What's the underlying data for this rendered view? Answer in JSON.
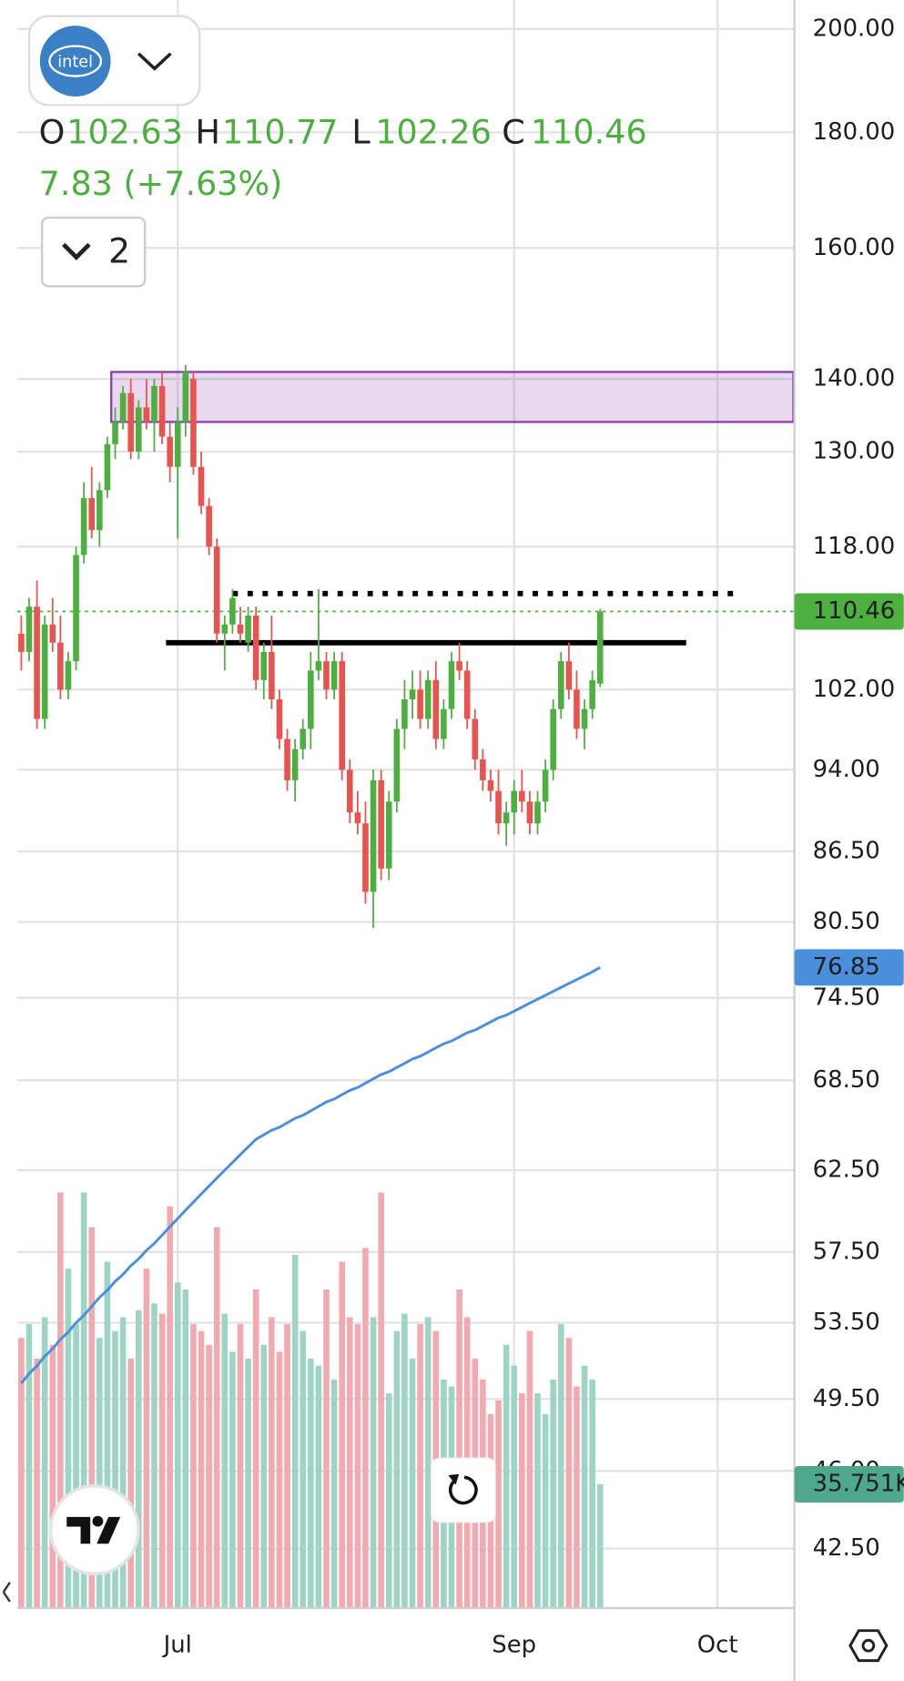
{
  "chart_data": {
    "type": "candlestick",
    "logo_text": "intel",
    "ohlc_labels": [
      "O",
      "H",
      "L",
      "C"
    ],
    "change_text": "7.83 (+7.63%)",
    "indicator_count": "2",
    "log_scale": true,
    "grid": true,
    "up_color": "#4caf3f",
    "down_color": "#e8534f",
    "ylim": [
      40,
      206
    ],
    "yticks": [
      {
        "value": 200,
        "label": "200.00"
      },
      {
        "value": 180,
        "label": "180.00"
      },
      {
        "value": 160,
        "label": "160.00"
      },
      {
        "value": 140,
        "label": "140.00"
      },
      {
        "value": 130,
        "label": "130.00"
      },
      {
        "value": 118,
        "label": "118.00"
      },
      {
        "value": 102,
        "label": "102.00"
      },
      {
        "value": 94,
        "label": "94.00"
      },
      {
        "value": 86.5,
        "label": "86.50"
      },
      {
        "value": 80.5,
        "label": "80.50"
      },
      {
        "value": 74.5,
        "label": "74.50"
      },
      {
        "value": 68.5,
        "label": "68.50"
      },
      {
        "value": 62.5,
        "label": "62.50"
      },
      {
        "value": 57.5,
        "label": "57.50"
      },
      {
        "value": 53.5,
        "label": "53.50"
      },
      {
        "value": 49.5,
        "label": "49.50"
      },
      {
        "value": 46,
        "label": "46.00"
      },
      {
        "value": 42.5,
        "label": "42.50"
      }
    ],
    "xlim": [
      -0.5,
      98.7
    ],
    "xticks": [
      {
        "value": 20,
        "label": "Jul"
      },
      {
        "value": 63,
        "label": "Sep"
      },
      {
        "value": 89,
        "label": "Oct"
      }
    ],
    "open": [
      108,
      106,
      111,
      99,
      109,
      107,
      102,
      105,
      117,
      124,
      120,
      125,
      131,
      134,
      138,
      130,
      136,
      134,
      139,
      132,
      128,
      134,
      140,
      128,
      123,
      118,
      108,
      109,
      109,
      107,
      110,
      103,
      106,
      101,
      97,
      93,
      96,
      98,
      104,
      105,
      102,
      105,
      94,
      90,
      89,
      83,
      93,
      85,
      91,
      98,
      101,
      102,
      99,
      103,
      97,
      100,
      105,
      104,
      99,
      95,
      93,
      92,
      89,
      90,
      92,
      91,
      89,
      91,
      94,
      100,
      105,
      102,
      98,
      100,
      102.63
    ],
    "high": [
      110,
      112,
      114,
      110,
      112,
      110,
      106,
      118,
      126,
      128,
      126,
      132,
      136,
      139,
      140,
      137,
      140,
      140,
      141,
      134,
      136,
      142,
      141,
      130,
      124,
      119,
      110,
      113,
      111,
      111,
      111,
      107,
      110,
      102,
      98,
      97,
      99,
      106,
      113,
      106,
      106,
      106,
      95,
      92,
      91,
      94,
      94,
      92,
      99,
      103,
      104,
      104,
      104,
      105,
      101,
      106,
      107,
      105,
      100,
      96,
      94,
      94,
      91,
      93,
      94,
      92,
      92,
      95,
      101,
      106,
      107,
      104,
      101,
      104,
      110.77
    ],
    "low": [
      104,
      105,
      98,
      98,
      106,
      101,
      101,
      104,
      116,
      119,
      118,
      124,
      129,
      133,
      129,
      129,
      133,
      130,
      131,
      126,
      119,
      132,
      127,
      122,
      117,
      107,
      104,
      108,
      107,
      106,
      102,
      101,
      100,
      96,
      92,
      91,
      95,
      96,
      103,
      101,
      101,
      93,
      89,
      88,
      82,
      80,
      84,
      84,
      90,
      96,
      99,
      98,
      98,
      96,
      96,
      99,
      103,
      98,
      94,
      92,
      91,
      88,
      87,
      88,
      90,
      88,
      88,
      90,
      93,
      99,
      101,
      97,
      96,
      99,
      102.26
    ],
    "close": [
      106,
      111,
      99,
      109,
      107,
      102,
      105,
      117,
      124,
      120,
      125,
      131,
      134,
      138,
      130,
      136,
      134,
      139,
      132,
      128,
      134,
      141,
      128,
      123,
      118,
      108,
      109,
      112,
      108,
      110,
      103,
      106,
      101,
      97,
      93,
      96,
      98,
      104,
      105,
      102,
      105,
      94,
      90,
      89,
      83,
      93,
      85,
      91,
      98,
      101,
      102,
      99,
      103,
      97,
      100,
      105,
      104,
      99,
      95,
      93,
      92,
      89,
      90,
      92,
      91,
      89,
      91,
      94,
      100,
      105,
      102,
      98,
      100,
      103,
      110.46
    ],
    "volume": [
      78000,
      82000,
      72000,
      84000,
      76000,
      120000,
      98000,
      82000,
      120000,
      110000,
      78000,
      100000,
      80000,
      84000,
      72000,
      86000,
      98000,
      88000,
      85000,
      116000,
      94000,
      92000,
      82000,
      80000,
      76000,
      110000,
      85000,
      74000,
      82000,
      72000,
      92000,
      76000,
      84000,
      74000,
      82000,
      102000,
      80000,
      72000,
      70000,
      92000,
      66000,
      100000,
      84000,
      82000,
      104000,
      84000,
      120000,
      62000,
      80000,
      85000,
      72000,
      82000,
      84000,
      80000,
      66000,
      64000,
      92000,
      84000,
      72000,
      66000,
      56000,
      60000,
      76000,
      70000,
      62000,
      80000,
      62000,
      56000,
      66000,
      82000,
      78000,
      64000,
      70000,
      66000,
      35751
    ],
    "volume_label": "35.751K",
    "volume_ylim": [
      0,
      130000
    ],
    "volume_up_color": "#9ed4c4",
    "volume_down_color": "#f2aab0",
    "ma": {
      "color": "#4a8fdc",
      "values": [
        50.3,
        50.8,
        51.2,
        51.7,
        52.1,
        52.6,
        53.0,
        53.5,
        53.9,
        54.4,
        54.9,
        55.3,
        55.8,
        56.2,
        56.7,
        57.1,
        57.6,
        58.0,
        58.5,
        59.0,
        59.5,
        60.0,
        60.5,
        61.0,
        61.5,
        62.0,
        62.5,
        63.0,
        63.5,
        64.0,
        64.5,
        64.8,
        65.1,
        65.3,
        65.6,
        65.9,
        66.1,
        66.4,
        66.7,
        67.0,
        67.2,
        67.5,
        67.8,
        68.0,
        68.3,
        68.6,
        68.9,
        69.1,
        69.4,
        69.7,
        70.0,
        70.2,
        70.5,
        70.8,
        71.1,
        71.3,
        71.6,
        71.9,
        72.1,
        72.4,
        72.7,
        73.0,
        73.2,
        73.5,
        73.8,
        74.1,
        74.4,
        74.7,
        75.0,
        75.3,
        75.6,
        75.9,
        76.2,
        76.5,
        76.85
      ]
    },
    "zone": {
      "low": 134,
      "high": 141,
      "start": 11.5,
      "end": 98.7,
      "color": "#8e3fb0"
    },
    "dotted_level": {
      "value": 112.5,
      "start": 27,
      "end": 91
    },
    "support_level": {
      "value": 107,
      "start": 18.5,
      "end": 85
    }
  }
}
